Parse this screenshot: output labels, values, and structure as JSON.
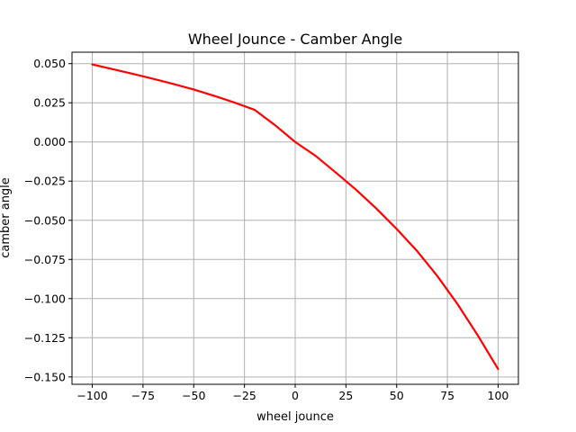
{
  "chart_data": {
    "type": "line",
    "title": "Wheel Jounce - Camber Angle",
    "xlabel": "wheel jounce",
    "ylabel": "camber angle",
    "xlim": [
      -110,
      110
    ],
    "ylim": [
      -0.1547,
      0.0573
    ],
    "grid": true,
    "legend": "none",
    "x_ticks": [
      -100,
      -75,
      -50,
      -25,
      0,
      25,
      50,
      75,
      100
    ],
    "x_tick_labels": [
      "−100",
      "−75",
      "−50",
      "−25",
      "0",
      "25",
      "50",
      "75",
      "100"
    ],
    "y_ticks": [
      0.05,
      0.025,
      0.0,
      -0.025,
      -0.05,
      -0.075,
      -0.1,
      -0.125,
      -0.15
    ],
    "y_tick_labels": [
      "0.050",
      "0.025",
      "0.000",
      "−0.025",
      "−0.050",
      "−0.075",
      "−0.100",
      "−0.125",
      "−0.150"
    ],
    "series": [
      {
        "color": "#ff0000",
        "x": [
          -100,
          -90,
          -80,
          -70,
          -60,
          -50,
          -40,
          -30,
          -20,
          -10,
          0,
          10,
          20,
          30,
          40,
          50,
          60,
          70,
          80,
          90,
          100
        ],
        "y": [
          0.0495,
          0.0465,
          0.0435,
          0.0403,
          0.037,
          0.0335,
          0.0295,
          0.0252,
          0.0205,
          0.0108,
          0.0,
          -0.0088,
          -0.0195,
          -0.0305,
          -0.0425,
          -0.0555,
          -0.0695,
          -0.0855,
          -0.1035,
          -0.1235,
          -0.145
        ]
      }
    ]
  }
}
